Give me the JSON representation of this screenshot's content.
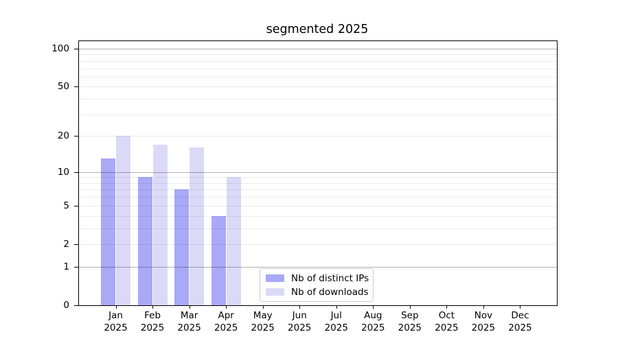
{
  "chart_data": {
    "type": "bar",
    "title": "segmented 2025",
    "categories": [
      "Jan",
      "Feb",
      "Mar",
      "Apr",
      "May",
      "Jun",
      "Jul",
      "Aug",
      "Sep",
      "Oct",
      "Nov",
      "Dec"
    ],
    "x_tick_second_line": "2025",
    "series": [
      {
        "name": "Nb of distinct IPs",
        "color": "#a9a9f7",
        "values": [
          13,
          9,
          7,
          4,
          null,
          null,
          null,
          null,
          null,
          null,
          null,
          null
        ]
      },
      {
        "name": "Nb of downloads",
        "color": "#dadaf8",
        "values": [
          20,
          17,
          16,
          9,
          null,
          null,
          null,
          null,
          null,
          null,
          null,
          null
        ]
      }
    ],
    "y_axis": {
      "scale": "log10(1+x)",
      "tick_labels": [
        0,
        1,
        2,
        5,
        10,
        20,
        50,
        100
      ],
      "major_gridlines": [
        1,
        10,
        100
      ],
      "minor_gridlines": [
        2,
        3,
        4,
        5,
        6,
        7,
        8,
        9,
        20,
        30,
        40,
        50,
        60,
        70,
        80,
        90
      ],
      "range": [
        0,
        112
      ]
    },
    "xlabel": "",
    "ylabel": "",
    "grid": "on",
    "legend_position": "lower center",
    "colors": {
      "axis": "#000000",
      "major_grid": "#b2b2b2",
      "minor_grid": "#ececec",
      "background": "#ffffff"
    }
  }
}
